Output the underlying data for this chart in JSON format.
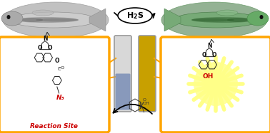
{
  "background_color": "#ffffff",
  "h2s_label": "H₂S",
  "left_box_color": "#FFA500",
  "right_box_color": "#FFA500",
  "reaction_site_text": "Reaction Site",
  "reaction_site_color": "#CC0000",
  "oh_text": "OH",
  "oh_color": "#CC0000",
  "n3_text": "N₃",
  "n3_color": "#CC0000",
  "arrow_color": "#000000",
  "tube_left_top_color": "#d8d8d8",
  "tube_left_bottom_color": "#8899bb",
  "tube_right_top_color": "#c8a000",
  "tube_right_bottom_color": "#c8a000",
  "connector_color": "#FFA500",
  "starburst_color": "#ffff88",
  "left_fish_bg": "#cccccc",
  "right_fish_bg": "#aabbaa"
}
